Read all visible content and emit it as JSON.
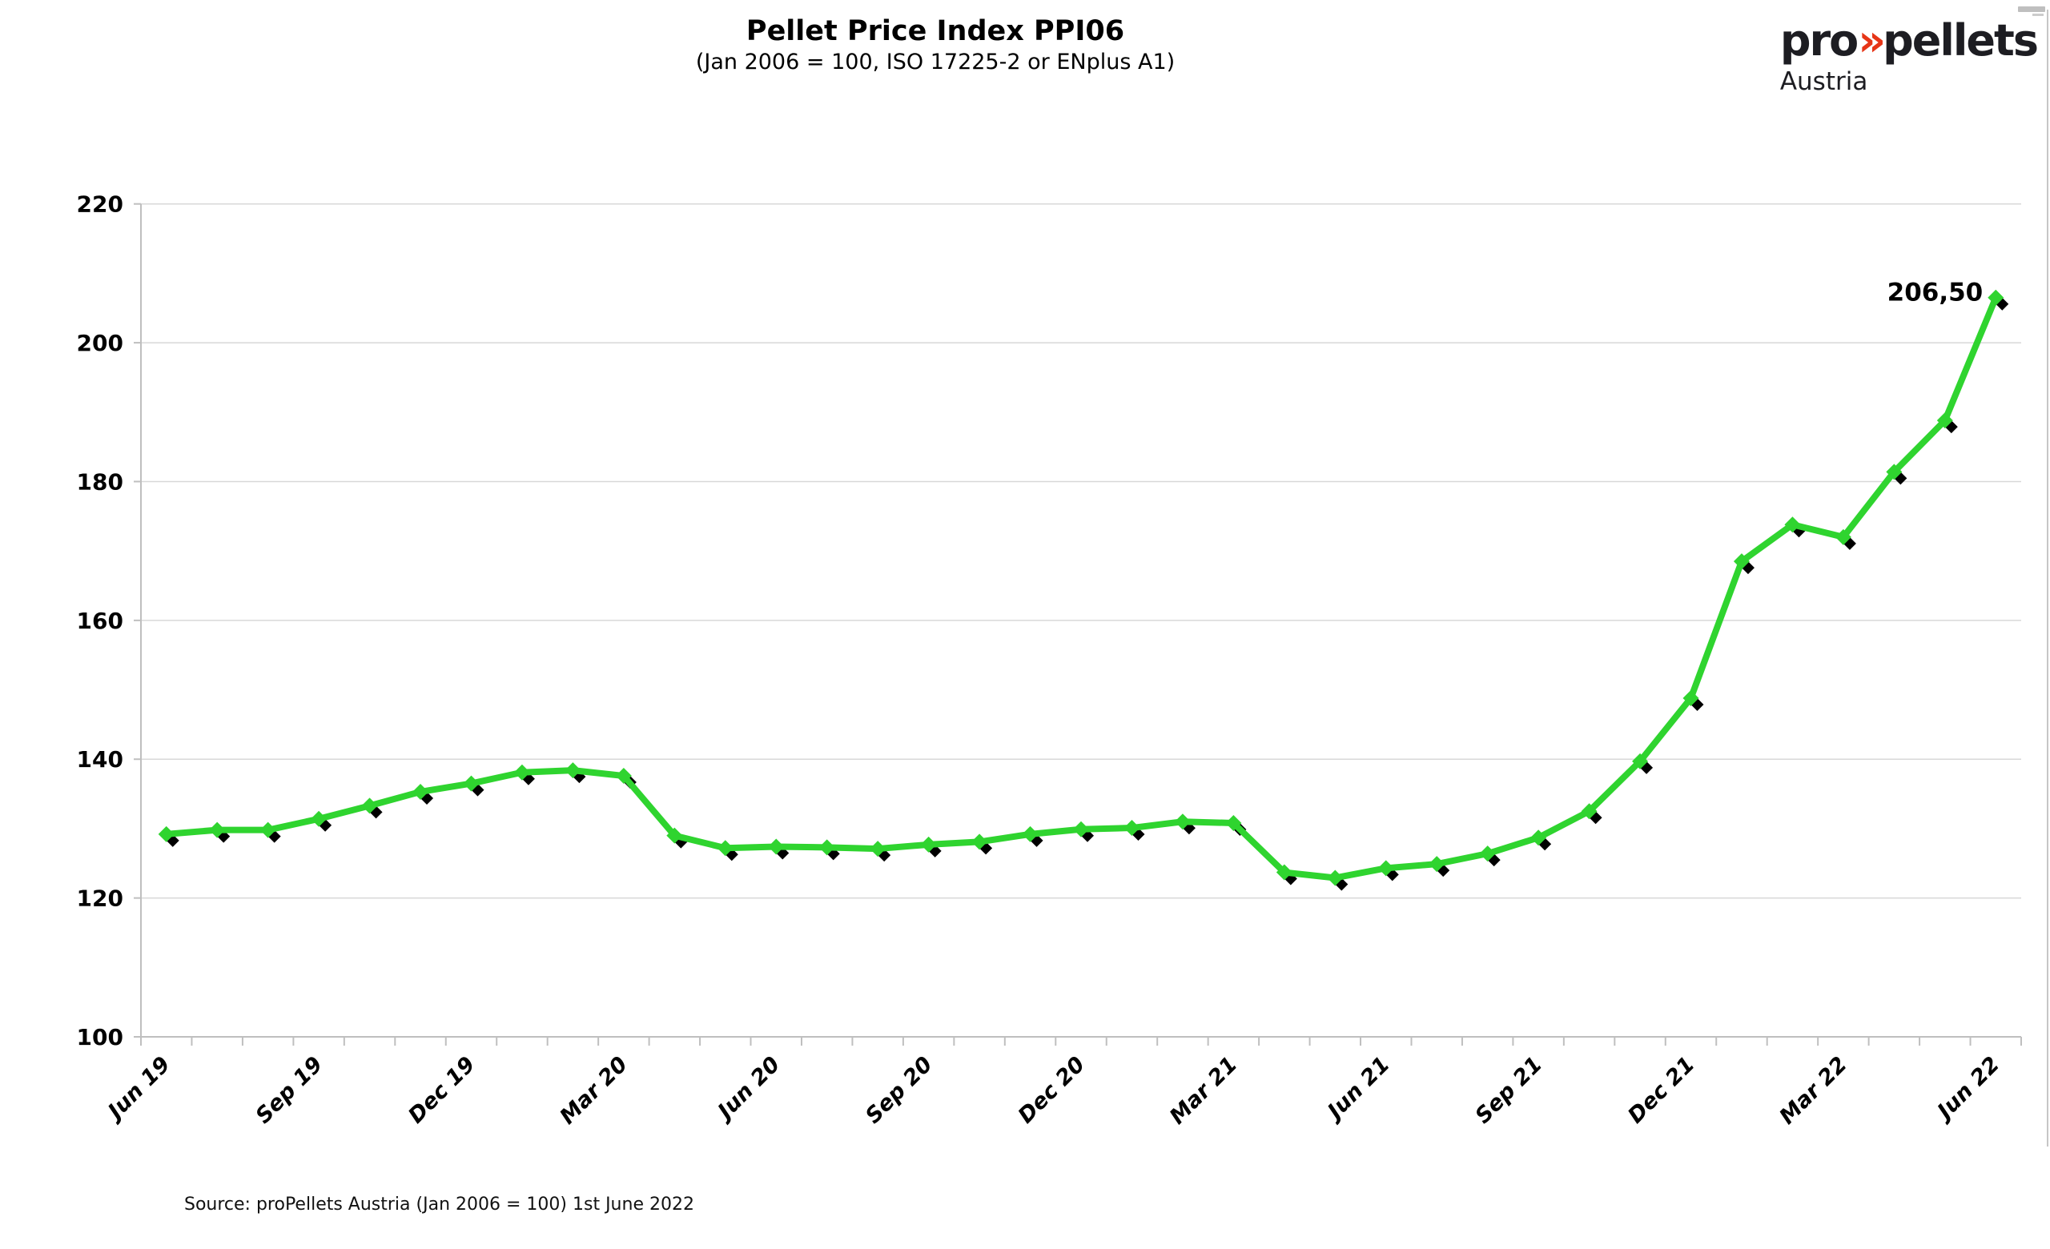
{
  "header": {
    "title": "Pellet Price Index PPI06",
    "subtitle": "(Jan 2006 = 100, ISO 17225-2 or ENplus A1)"
  },
  "logo": {
    "part1": "pro",
    "chevron": "»",
    "part2": "pellets",
    "subtitle": "Austria",
    "brand_color": "#e63517",
    "text_color": "#1d1d22"
  },
  "source_note": "Source: proPellets Austria (Jan 2006 = 100) 1st June 2022",
  "chart_data": {
    "type": "line",
    "title": "Pellet Price Index PPI06",
    "categories": [
      "Jun 19",
      "Jul 19",
      "Aug 19",
      "Sep 19",
      "Oct 19",
      "Nov 19",
      "Dec 19",
      "Jan 20",
      "Feb 20",
      "Mar 20",
      "Apr 20",
      "May 20",
      "Jun 20",
      "Jul 20",
      "Aug 20",
      "Sep 20",
      "Oct 20",
      "Nov 20",
      "Dec 20",
      "Jan 21",
      "Feb 21",
      "Mar 21",
      "Apr 21",
      "May 21",
      "Jun 21",
      "Jul 21",
      "Aug 21",
      "Sep 21",
      "Oct 21",
      "Nov 21",
      "Dec 21",
      "Jan 22",
      "Feb 22",
      "Mar 22",
      "Apr 22",
      "May 22",
      "Jun 22"
    ],
    "series": [
      {
        "name": "PPI06",
        "color": "#2fd42f",
        "values": [
          129.2,
          129.8,
          129.8,
          131.4,
          133.3,
          135.3,
          136.5,
          138.1,
          138.4,
          137.6,
          129.0,
          127.2,
          127.4,
          127.3,
          127.1,
          127.7,
          128.1,
          129.2,
          129.9,
          130.1,
          131.0,
          130.8,
          123.7,
          122.9,
          124.3,
          124.9,
          126.4,
          128.7,
          132.5,
          139.7,
          148.8,
          168.5,
          173.8,
          172.0,
          181.4,
          188.8,
          206.5
        ]
      }
    ],
    "x_tick_labels": [
      "Jun 19",
      "Sep 19",
      "Dec 19",
      "Mar 20",
      "Jun 20",
      "Sep 20",
      "Dec 20",
      "Mar 21",
      "Jun 21",
      "Sep 21",
      "Dec 21",
      "Mar 22",
      "Jun 22"
    ],
    "x_tick_every": 3,
    "y_ticks": [
      100,
      120,
      140,
      160,
      180,
      200,
      220
    ],
    "ylim": [
      100,
      220
    ],
    "grid": true,
    "legend": "none",
    "marker": "diamond",
    "marker_shadow_color": "#000000",
    "grid_color": "#d8d8d8",
    "axis_color": "#bfbfbf",
    "last_point_label": "206,50"
  }
}
